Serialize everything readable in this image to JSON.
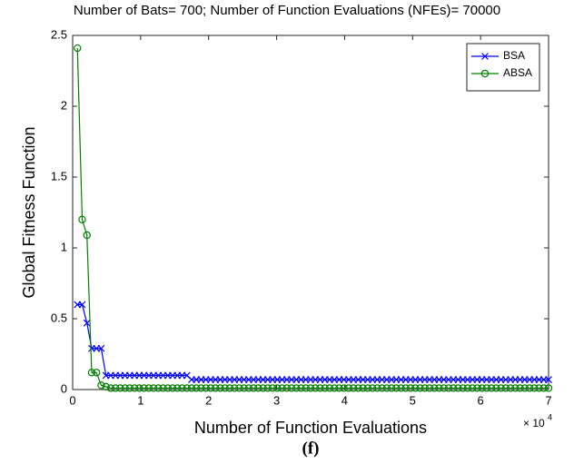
{
  "chart_data": {
    "type": "line",
    "title": "Number of Bats= 700; Number of Function Evaluations (NFEs)= 70000",
    "xlabel": "Number of Function Evaluations",
    "ylabel": "Global Fitness Function",
    "caption": "(f)",
    "x_multiplier": {
      "base": "× 10",
      "exponent": "4"
    },
    "x": [
      700,
      1400,
      2100,
      2800,
      3500,
      4200,
      4900,
      5600,
      6300,
      7000,
      7700,
      8400,
      9100,
      9800,
      10500,
      11200,
      11900,
      12600,
      13300,
      14000,
      14700,
      15400,
      16100,
      16800,
      17500,
      18200,
      18900,
      19600,
      20300,
      21000,
      21700,
      22400,
      23100,
      23800,
      24500,
      25200,
      25900,
      26600,
      27300,
      28000,
      28700,
      29400,
      30100,
      30800,
      31500,
      32200,
      32900,
      33600,
      34300,
      35000,
      35700,
      36400,
      37100,
      37800,
      38500,
      39200,
      39900,
      40600,
      41300,
      42000,
      42700,
      43400,
      44100,
      44800,
      45500,
      46200,
      46900,
      47600,
      48300,
      49000,
      49700,
      50400,
      51100,
      51800,
      52500,
      53200,
      53900,
      54600,
      55300,
      56000,
      56700,
      57400,
      58100,
      58800,
      59500,
      60200,
      60900,
      61600,
      62300,
      63000,
      63700,
      64400,
      65100,
      65800,
      66500,
      67200,
      67900,
      68600,
      69300,
      70000
    ],
    "series": [
      {
        "name": "BSA",
        "color": "#0000ff",
        "marker": "x",
        "values": [
          0.6,
          0.6,
          0.47,
          0.29,
          0.29,
          0.29,
          0.1,
          0.1,
          0.1,
          0.1,
          0.1,
          0.1,
          0.1,
          0.1,
          0.1,
          0.1,
          0.1,
          0.1,
          0.1,
          0.1,
          0.1,
          0.1,
          0.1,
          0.1,
          0.07,
          0.07,
          0.07,
          0.07,
          0.07,
          0.07,
          0.07,
          0.07,
          0.07,
          0.07,
          0.07,
          0.07,
          0.07,
          0.07,
          0.07,
          0.07,
          0.07,
          0.07,
          0.07,
          0.07,
          0.07,
          0.07,
          0.07,
          0.07,
          0.07,
          0.07,
          0.07,
          0.07,
          0.07,
          0.07,
          0.07,
          0.07,
          0.07,
          0.07,
          0.07,
          0.07,
          0.07,
          0.07,
          0.07,
          0.07,
          0.07,
          0.07,
          0.07,
          0.07,
          0.07,
          0.07,
          0.07,
          0.07,
          0.07,
          0.07,
          0.07,
          0.07,
          0.07,
          0.07,
          0.07,
          0.07,
          0.07,
          0.07,
          0.07,
          0.07,
          0.07,
          0.07,
          0.07,
          0.07,
          0.07,
          0.07,
          0.07,
          0.07,
          0.07,
          0.07,
          0.07,
          0.07,
          0.07,
          0.07,
          0.07,
          0.07
        ]
      },
      {
        "name": "ABSA",
        "color": "#008000",
        "marker": "o",
        "values": [
          2.41,
          1.2,
          1.09,
          0.12,
          0.12,
          0.03,
          0.02,
          0.01,
          0.01,
          0.01,
          0.01,
          0.01,
          0.01,
          0.01,
          0.01,
          0.01,
          0.01,
          0.01,
          0.01,
          0.01,
          0.01,
          0.01,
          0.01,
          0.01,
          0.01,
          0.01,
          0.01,
          0.01,
          0.01,
          0.01,
          0.01,
          0.01,
          0.01,
          0.01,
          0.01,
          0.01,
          0.01,
          0.01,
          0.01,
          0.01,
          0.01,
          0.01,
          0.01,
          0.01,
          0.01,
          0.01,
          0.01,
          0.01,
          0.01,
          0.01,
          0.01,
          0.01,
          0.01,
          0.01,
          0.01,
          0.01,
          0.01,
          0.01,
          0.01,
          0.01,
          0.01,
          0.01,
          0.01,
          0.01,
          0.01,
          0.01,
          0.01,
          0.01,
          0.01,
          0.01,
          0.01,
          0.01,
          0.01,
          0.01,
          0.01,
          0.01,
          0.01,
          0.01,
          0.01,
          0.01,
          0.01,
          0.01,
          0.01,
          0.01,
          0.01,
          0.01,
          0.01,
          0.01,
          0.01,
          0.01,
          0.01,
          0.01,
          0.01,
          0.01,
          0.01,
          0.01,
          0.01,
          0.01,
          0.01,
          0.01
        ]
      }
    ],
    "xlim": [
      0,
      70000
    ],
    "xticks": [
      {
        "value": 0,
        "label": "0"
      },
      {
        "value": 10000,
        "label": "1"
      },
      {
        "value": 20000,
        "label": "2"
      },
      {
        "value": 30000,
        "label": "3"
      },
      {
        "value": 40000,
        "label": "4"
      },
      {
        "value": 50000,
        "label": "5"
      },
      {
        "value": 60000,
        "label": "6"
      },
      {
        "value": 70000,
        "label": "7"
      }
    ],
    "ylim": [
      0,
      2.5
    ],
    "yticks": [
      0,
      0.5,
      1,
      1.5,
      2,
      2.5
    ],
    "legend": "northeast"
  }
}
